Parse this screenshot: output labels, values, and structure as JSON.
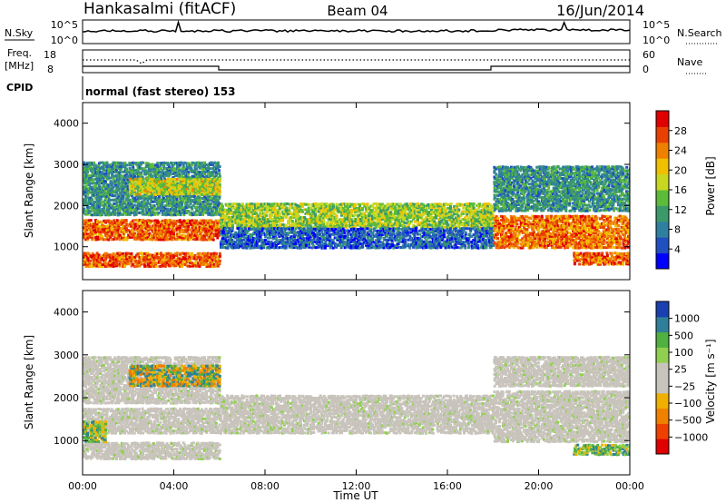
{
  "header": {
    "station": "Hankasalmi (fitACF)",
    "beam": "Beam 04",
    "date": "16/Jun/2014"
  },
  "strips": {
    "nsky_label": "N.Sky",
    "nsearch_label": "N.Search",
    "freq_label_1": "Freq.",
    "freq_label_2": "[MHz]",
    "nave_label": "Nave",
    "cpid_label": "CPID",
    "cpid_text": "normal (fast stereo) 153",
    "nsky_ticks": [
      "10^5",
      "10^0"
    ],
    "nsearch_ticks": [
      "10^5",
      "10^0"
    ],
    "freq_ticks": [
      "18",
      "8"
    ],
    "nave_ticks": [
      "60",
      "0"
    ]
  },
  "chart_data": [
    {
      "type": "heatmap",
      "title": "",
      "ylabel": "Slant Range [km]",
      "xlabel": "",
      "ylim": [
        200,
        4500
      ],
      "y_ticks": [
        "4000",
        "3000",
        "2000",
        "1000"
      ],
      "x_ticks": [
        "00:00",
        "04:00",
        "08:00",
        "12:00",
        "16:00",
        "20:00",
        "00:00"
      ],
      "colorbar": {
        "label": "Power [dB]",
        "ticks": [
          "28",
          "24",
          "20",
          "16",
          "12",
          "8",
          "4"
        ],
        "range": [
          0,
          32
        ],
        "colors": [
          "#0000ff",
          "#1f4fc0",
          "#2f7fa0",
          "#3a9a6a",
          "#5dbb3a",
          "#c8d820",
          "#f0c000",
          "#f08000",
          "#e84000",
          "#e00000"
        ]
      },
      "bands": [
        {
          "from_h": 0.0,
          "to_h": 6.0,
          "ranges_km": [
            [
              1200,
              1700
            ],
            [
              550,
              900
            ]
          ],
          "level_db": 26
        },
        {
          "from_h": 0.0,
          "to_h": 6.0,
          "ranges_km": [
            [
              1800,
              3100
            ]
          ],
          "level_db": 10
        },
        {
          "from_h": 2.0,
          "to_h": 6.0,
          "ranges_km": [
            [
              2300,
              2700
            ]
          ],
          "level_db": 18
        },
        {
          "from_h": 6.0,
          "to_h": 18.0,
          "ranges_km": [
            [
              1500,
              2100
            ]
          ],
          "level_db": 16
        },
        {
          "from_h": 6.0,
          "to_h": 18.0,
          "ranges_km": [
            [
              1000,
              1500
            ]
          ],
          "level_db": 6
        },
        {
          "from_h": 18.0,
          "to_h": 24.0,
          "ranges_km": [
            [
              1000,
              1800
            ]
          ],
          "level_db": 25
        },
        {
          "from_h": 18.0,
          "to_h": 24.0,
          "ranges_km": [
            [
              1900,
              3000
            ]
          ],
          "level_db": 10
        },
        {
          "from_h": 21.5,
          "to_h": 24.0,
          "ranges_km": [
            [
              600,
              900
            ]
          ],
          "level_db": 26
        }
      ]
    },
    {
      "type": "heatmap",
      "title": "",
      "ylabel": "Slant Range [km]",
      "xlabel": "Time UT",
      "ylim": [
        200,
        4500
      ],
      "y_ticks": [
        "4000",
        "3000",
        "2000",
        "1000"
      ],
      "x_ticks": [
        "00:00",
        "04:00",
        "08:00",
        "12:00",
        "16:00",
        "20:00",
        "00:00"
      ],
      "colorbar": {
        "label": "Velocity [m s⁻¹]",
        "ticks": [
          "1000",
          "500",
          "100",
          "25",
          "−25",
          "−100",
          "−500",
          "−1000"
        ],
        "colors": [
          "#e00000",
          "#f04000",
          "#f08000",
          "#f0b000",
          "#c8c4bc",
          "#c8c4bc",
          "#90d050",
          "#50b040",
          "#2f7f9a",
          "#1a3fb0"
        ]
      },
      "bands": [
        {
          "from_h": 0.0,
          "to_h": 6.0,
          "ranges_km": [
            [
              1200,
              1800
            ],
            [
              600,
              1000
            ],
            [
              1900,
              3000
            ]
          ],
          "class": "ground"
        },
        {
          "from_h": 2.0,
          "to_h": 6.0,
          "ranges_km": [
            [
              2300,
              2800
            ]
          ],
          "class": "negative"
        },
        {
          "from_h": 0.0,
          "to_h": 1.0,
          "ranges_km": [
            [
              1000,
              1500
            ]
          ],
          "class": "positive"
        },
        {
          "from_h": 6.0,
          "to_h": 18.0,
          "ranges_km": [
            [
              1200,
              2100
            ]
          ],
          "class": "ground"
        },
        {
          "from_h": 18.0,
          "to_h": 24.0,
          "ranges_km": [
            [
              1000,
              2200
            ],
            [
              2300,
              3000
            ]
          ],
          "class": "ground"
        },
        {
          "from_h": 21.5,
          "to_h": 24.0,
          "ranges_km": [
            [
              700,
              950
            ]
          ],
          "class": "positive"
        }
      ]
    }
  ]
}
